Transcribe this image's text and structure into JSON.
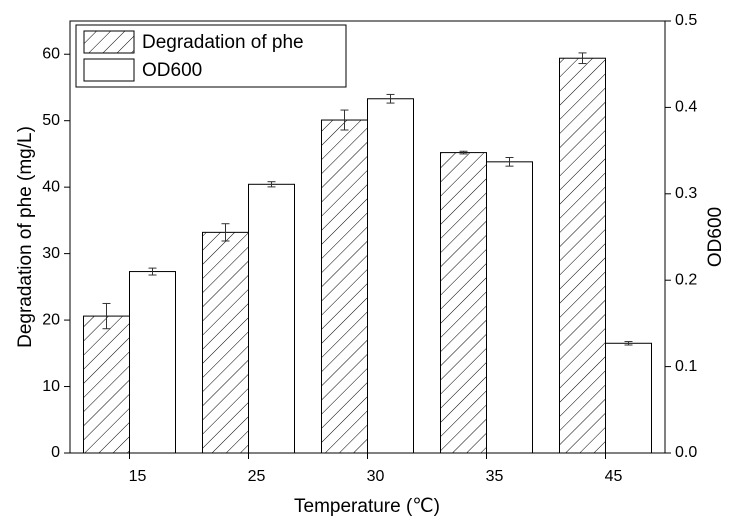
{
  "chart_data": {
    "type": "bar",
    "x_label": "Temperature (℃)",
    "y_label": "Degradation of phe (mg/L)",
    "y2_label": "OD600",
    "categories": [
      "15",
      "25",
      "30",
      "35",
      "45"
    ],
    "series": [
      {
        "name": "Degradation of phe",
        "color": "#ffffff",
        "hatch": true,
        "values": [
          20.6,
          33.2,
          50.1,
          45.2,
          59.4
        ],
        "errors": [
          1.9,
          1.3,
          1.5,
          0.2,
          0.8
        ]
      },
      {
        "name": "OD600",
        "color": "#ffffff",
        "hatch": false,
        "axis": "y2",
        "values": [
          0.21,
          0.311,
          0.41,
          0.337,
          0.127
        ],
        "errors": [
          0.004,
          0.003,
          0.005,
          0.005,
          0.002
        ]
      }
    ],
    "ylim": [
      0,
      65
    ],
    "yticks": [
      0,
      10,
      20,
      30,
      40,
      50,
      60
    ],
    "y2lim": [
      0,
      0.5
    ],
    "y2ticks": [
      {
        "value": 0,
        "label": "0.0"
      },
      0.1,
      0.2,
      0.3,
      0.4,
      0.5
    ],
    "legend": "upper-left"
  }
}
